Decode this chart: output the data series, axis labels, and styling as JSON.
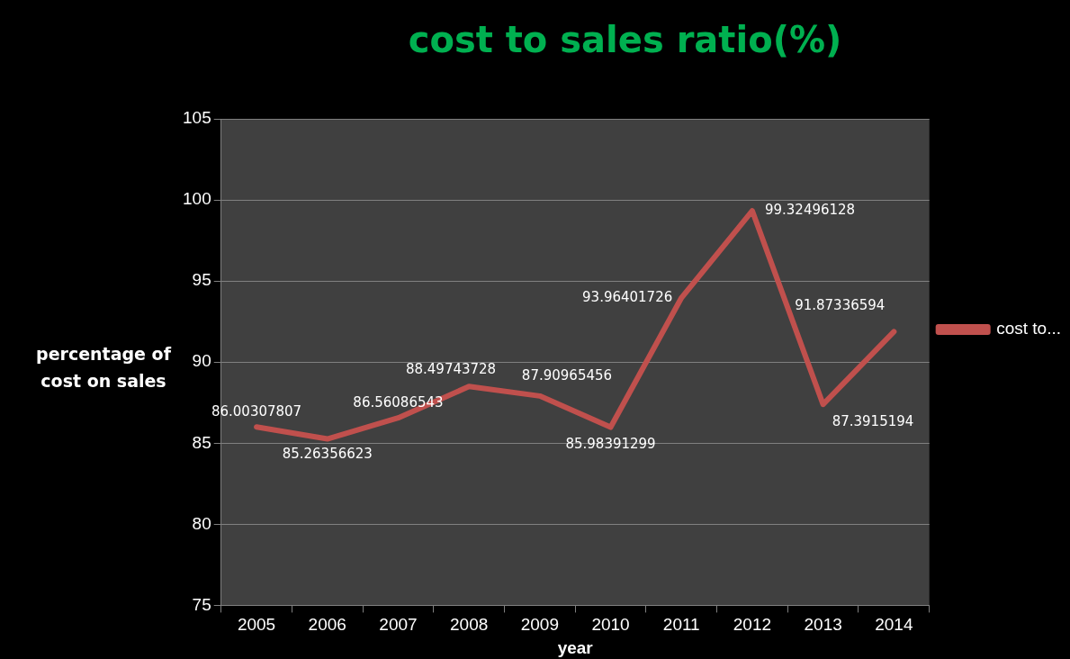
{
  "chart_data": {
    "type": "line",
    "title": "cost to sales ratio(%)",
    "xlabel": "year",
    "ylabel": "percentage of cost on sales",
    "categories": [
      "2005",
      "2006",
      "2007",
      "2008",
      "2009",
      "2010",
      "2011",
      "2012",
      "2013",
      "2014"
    ],
    "series": [
      {
        "name": "cost to...",
        "color": "#c0504d",
        "values": [
          86.00307807,
          85.26356623,
          86.56086543,
          88.49743728,
          87.90965456,
          85.98391299,
          93.96401726,
          99.32496128,
          87.3915194,
          91.87336594
        ]
      }
    ],
    "ylim": [
      75,
      105
    ],
    "yticks": [
      75,
      80,
      85,
      90,
      95,
      100,
      105
    ],
    "grid": "y",
    "legend": "right",
    "marker": "none",
    "data_labels": true
  }
}
